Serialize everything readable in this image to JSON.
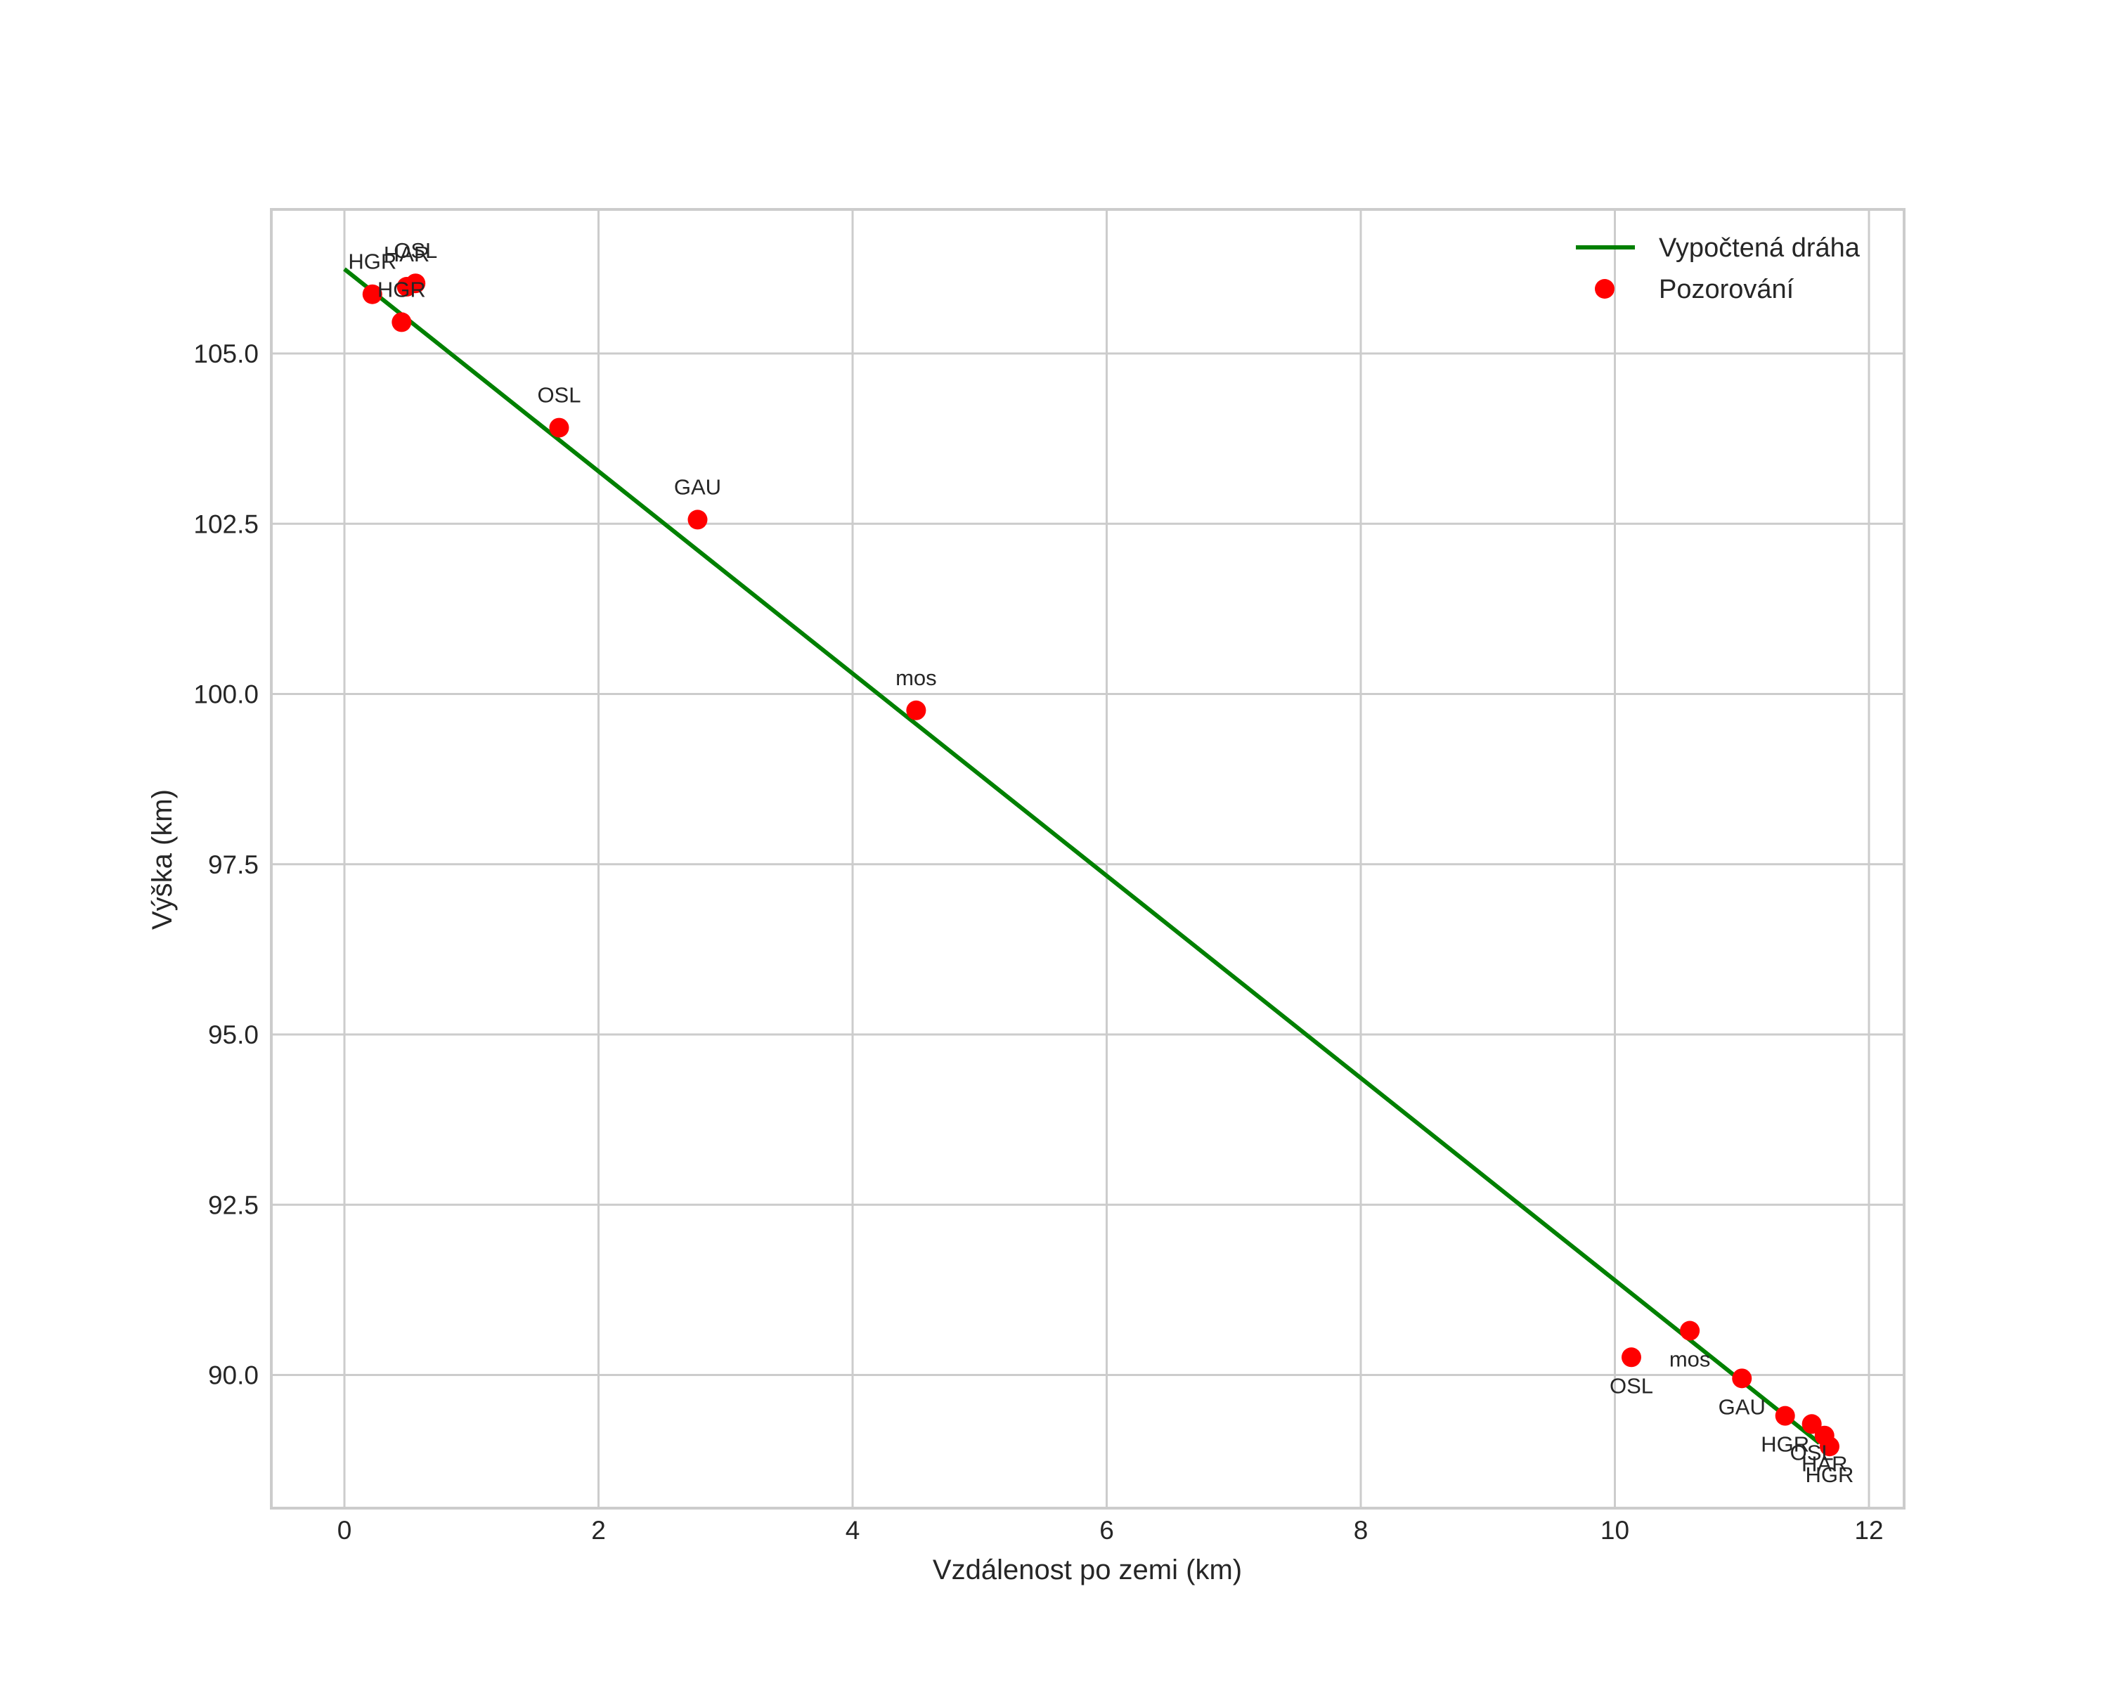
{
  "chart_data": {
    "type": "scatter",
    "title": "",
    "xlabel": "Vzdálenost po zemi (km)",
    "ylabel": "Výška (km)",
    "xlim": [
      -0.6,
      12.3
    ],
    "ylim": [
      88.05,
      107.15
    ],
    "grid": true,
    "legend_position": "upper right",
    "x_ticks": [
      0,
      2,
      4,
      6,
      8,
      10,
      12
    ],
    "x_tick_labels": [
      "0",
      "2",
      "4",
      "6",
      "8",
      "10",
      "12"
    ],
    "y_ticks": [
      90.0,
      92.5,
      95.0,
      97.5,
      100.0,
      102.5,
      105.0
    ],
    "y_tick_labels": [
      "90.0",
      "92.5",
      "95.0",
      "97.5",
      "100.0",
      "102.5",
      "105.0"
    ],
    "legend": [
      {
        "label": "Vypočtená dráha",
        "type": "line",
        "color": "#008000"
      },
      {
        "label": "Pozorování",
        "type": "marker",
        "color": "#ff0000"
      }
    ],
    "series": [
      {
        "name": "Vypočtená dráha",
        "type": "line",
        "color": "#008000",
        "x": [
          0.0,
          11.61
        ],
        "y": [
          106.24,
          89.0
        ]
      },
      {
        "name": "Pozorování",
        "type": "scatter",
        "color": "#ff0000",
        "points": [
          {
            "x": 0.22,
            "y": 105.87,
            "label": "HGR",
            "label_pos": "above"
          },
          {
            "x": 0.45,
            "y": 105.46,
            "label": "HGR",
            "label_pos": "above"
          },
          {
            "x": 0.49,
            "y": 105.98,
            "label": "HAR",
            "label_pos": "above"
          },
          {
            "x": 0.56,
            "y": 106.03,
            "label": "OSL",
            "label_pos": "above"
          },
          {
            "x": 1.69,
            "y": 103.91,
            "label": "OSL",
            "label_pos": "above"
          },
          {
            "x": 2.78,
            "y": 102.56,
            "label": "GAU",
            "label_pos": "above"
          },
          {
            "x": 4.5,
            "y": 99.76,
            "label": "mos",
            "label_pos": "above"
          },
          {
            "x": 10.13,
            "y": 90.26,
            "label": "OSL",
            "label_pos": "below"
          },
          {
            "x": 10.59,
            "y": 90.65,
            "label": "mos",
            "label_pos": "below"
          },
          {
            "x": 11.0,
            "y": 89.95,
            "label": "GAU",
            "label_pos": "below"
          },
          {
            "x": 11.34,
            "y": 89.4,
            "label": "HGR",
            "label_pos": "below"
          },
          {
            "x": 11.55,
            "y": 89.28,
            "label": "OSL",
            "label_pos": "below"
          },
          {
            "x": 11.65,
            "y": 89.11,
            "label": "HAR",
            "label_pos": "below"
          },
          {
            "x": 11.69,
            "y": 88.95,
            "label": "HGR",
            "label_pos": "below"
          }
        ]
      }
    ]
  },
  "colors": {
    "line": "#008000",
    "marker": "#ff0000",
    "grid": "#cccccc",
    "text": "#262626",
    "background": "#ffffff"
  }
}
